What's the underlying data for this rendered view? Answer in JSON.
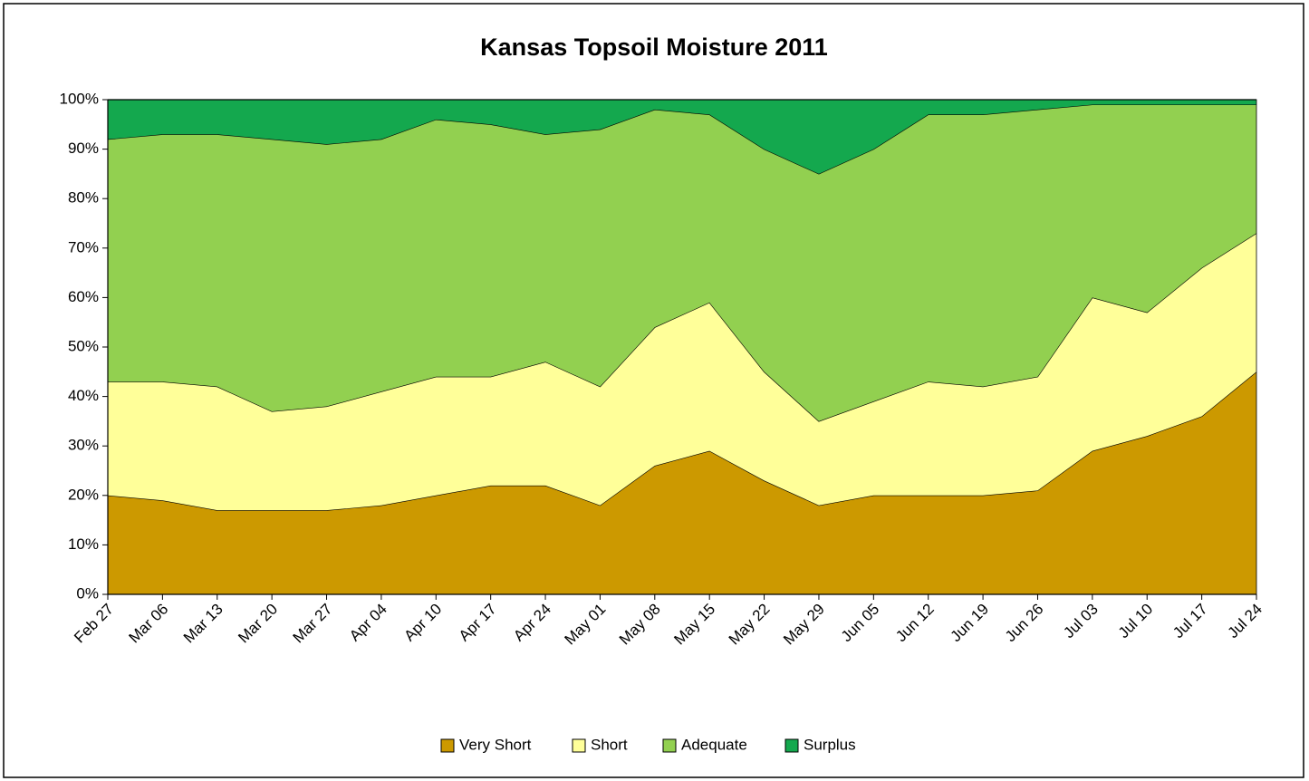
{
  "chart_data": {
    "type": "stacked_area",
    "title": "Kansas Topsoil Moisture 2011",
    "categories": [
      "Feb 27",
      "Mar 06",
      "Mar 13",
      "Mar 20",
      "Mar 27",
      "Apr 04",
      "Apr 10",
      "Apr 17",
      "Apr 24",
      "May 01",
      "May 08",
      "May 15",
      "May 22",
      "May 29",
      "Jun 05",
      "Jun 12",
      "Jun 19",
      "Jun 26",
      "Jul 03",
      "Jul 10",
      "Jul 17",
      "Jul 24"
    ],
    "series": [
      {
        "name": "Very Short",
        "color": "#cc9900",
        "values": [
          20,
          19,
          17,
          17,
          17,
          18,
          20,
          22,
          22,
          18,
          26,
          29,
          23,
          18,
          20,
          20,
          20,
          21,
          29,
          32,
          36,
          45
        ]
      },
      {
        "name": "Short",
        "color": "#ffff99",
        "values": [
          23,
          24,
          25,
          20,
          21,
          23,
          24,
          22,
          25,
          24,
          28,
          30,
          22,
          17,
          19,
          23,
          22,
          23,
          31,
          25,
          30,
          28
        ]
      },
      {
        "name": "Adequate",
        "color": "#92d050",
        "values": [
          49,
          50,
          51,
          55,
          53,
          51,
          52,
          51,
          46,
          52,
          44,
          38,
          45,
          50,
          51,
          54,
          55,
          54,
          39,
          42,
          33,
          26
        ]
      },
      {
        "name": "Surplus",
        "color": "#14a84e",
        "values": [
          8,
          7,
          7,
          8,
          9,
          8,
          4,
          5,
          7,
          6,
          2,
          3,
          10,
          15,
          10,
          3,
          3,
          2,
          1,
          1,
          1,
          1
        ]
      }
    ],
    "ylim": [
      0,
      100
    ],
    "yticks": [
      {
        "value": 0,
        "label": "0%"
      },
      {
        "value": 10,
        "label": "10%"
      },
      {
        "value": 20,
        "label": "20%"
      },
      {
        "value": 30,
        "label": "30%"
      },
      {
        "value": 40,
        "label": "40%"
      },
      {
        "value": 50,
        "label": "50%"
      },
      {
        "value": 60,
        "label": "60%"
      },
      {
        "value": 70,
        "label": "70%"
      },
      {
        "value": 80,
        "label": "80%"
      },
      {
        "value": 90,
        "label": "90%"
      },
      {
        "value": 100,
        "label": "100%"
      }
    ],
    "legend": "bottom"
  }
}
